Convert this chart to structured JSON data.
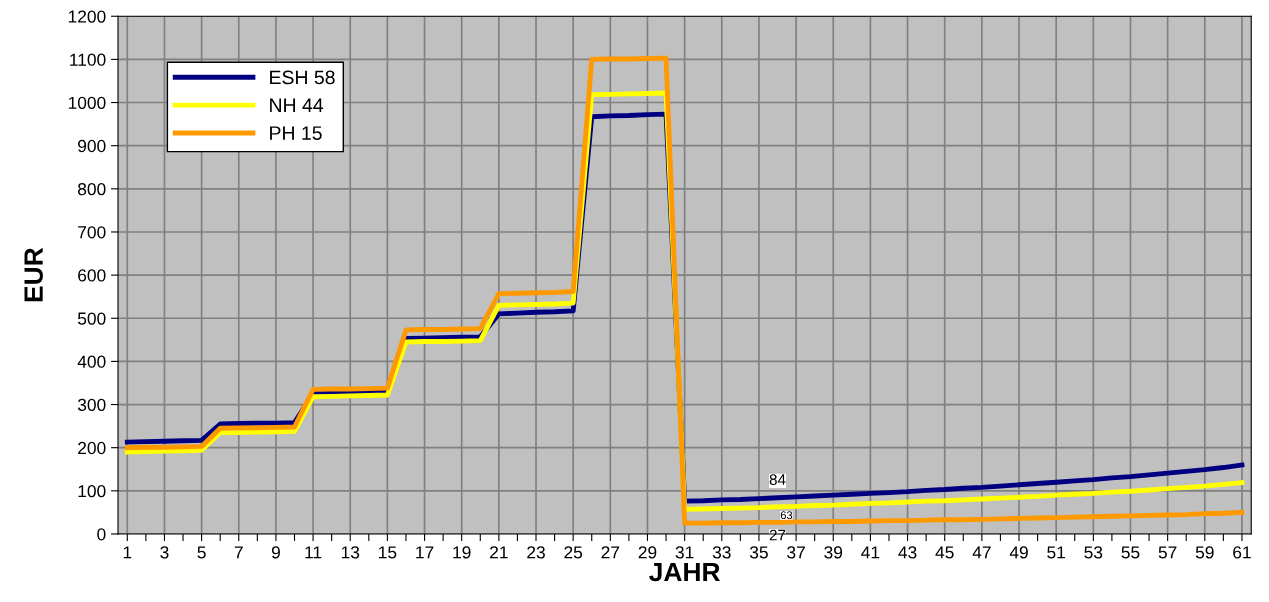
{
  "chart_data": {
    "type": "line",
    "xlabel": "JAHR",
    "ylabel": "EUR",
    "categories": [
      "1",
      null,
      "3",
      null,
      "5",
      null,
      "7",
      null,
      "9",
      null,
      "11",
      null,
      "13",
      null,
      "15",
      null,
      "17",
      null,
      "19",
      null,
      "21",
      null,
      "23",
      null,
      "25",
      null,
      "27",
      null,
      "29",
      null,
      "31",
      null,
      "33",
      null,
      "35",
      null,
      "37",
      null,
      "39",
      null,
      "41",
      null,
      "43",
      null,
      "45",
      null,
      "47",
      null,
      "49",
      null,
      "51",
      null,
      "53",
      null,
      "55",
      null,
      "57",
      null,
      "59",
      null,
      "61"
    ],
    "series": [
      {
        "name": "ESH 58",
        "color": "#000080",
        "values": [
          213,
          214,
          215,
          216,
          217,
          255,
          256,
          257,
          257,
          258,
          325,
          326,
          327,
          329,
          330,
          453,
          454,
          455,
          456,
          457,
          510,
          512,
          514,
          515,
          517,
          967,
          969,
          970,
          972,
          973,
          76,
          77,
          79,
          80,
          82,
          84,
          86,
          88,
          90,
          92,
          94,
          96,
          98,
          101,
          103,
          106,
          108,
          111,
          114,
          117,
          120,
          123,
          126,
          130,
          133,
          137,
          141,
          145,
          149,
          154,
          160
        ],
        "value_labels": [
          null,
          null,
          null,
          null,
          null,
          null,
          null,
          null,
          null,
          null,
          null,
          null,
          null,
          null,
          null,
          null,
          null,
          null,
          null,
          null,
          null,
          null,
          null,
          null,
          null,
          null,
          null,
          null,
          null,
          null,
          null,
          null,
          null,
          null,
          null,
          "84",
          null,
          null,
          null,
          null,
          null,
          null,
          null,
          null,
          null,
          null,
          null,
          null,
          null,
          null,
          null,
          null,
          null,
          null,
          null,
          null,
          null,
          null,
          null,
          null,
          null
        ]
      },
      {
        "name": "NH 44",
        "color": "#ffff00",
        "values": [
          190,
          191,
          192,
          193,
          194,
          235,
          235,
          236,
          237,
          238,
          318,
          319,
          320,
          321,
          322,
          445,
          446,
          446,
          447,
          448,
          530,
          531,
          532,
          533,
          535,
          1018,
          1019,
          1020,
          1021,
          1022,
          57,
          58,
          59,
          60,
          61,
          63,
          64,
          66,
          67,
          69,
          71,
          72,
          74,
          76,
          77,
          79,
          81,
          83,
          85,
          87,
          90,
          92,
          94,
          97,
          99,
          102,
          105,
          108,
          111,
          115,
          119
        ],
        "value_labels": [
          null,
          null,
          null,
          null,
          null,
          null,
          null,
          null,
          null,
          null,
          null,
          null,
          null,
          null,
          null,
          null,
          null,
          null,
          null,
          null,
          null,
          null,
          null,
          null,
          null,
          null,
          null,
          null,
          null,
          null,
          null,
          null,
          null,
          null,
          null,
          "63",
          null,
          null,
          null,
          null,
          null,
          null,
          null,
          null,
          null,
          null,
          null,
          null,
          null,
          null,
          null,
          null,
          null,
          null,
          null,
          null,
          null,
          null,
          null,
          null,
          null
        ]
      },
      {
        "name": "PH 15",
        "color": "#ff9900",
        "values": [
          200,
          201,
          201,
          202,
          203,
          245,
          246,
          246,
          247,
          248,
          335,
          336,
          336,
          337,
          338,
          473,
          474,
          474,
          475,
          476,
          557,
          558,
          559,
          560,
          562,
          1100,
          1101,
          1101,
          1102,
          1103,
          25,
          25,
          26,
          26,
          27,
          27,
          28,
          28,
          29,
          29,
          30,
          31,
          31,
          32,
          33,
          33,
          34,
          35,
          36,
          37,
          38,
          39,
          40,
          41,
          42,
          43,
          44,
          45,
          47,
          48,
          50
        ],
        "value_labels": [
          null,
          null,
          null,
          null,
          null,
          null,
          null,
          null,
          null,
          null,
          null,
          null,
          null,
          null,
          null,
          null,
          null,
          null,
          null,
          null,
          null,
          null,
          null,
          null,
          null,
          null,
          null,
          null,
          null,
          null,
          null,
          null,
          null,
          null,
          null,
          "27",
          null,
          null,
          null,
          null,
          null,
          null,
          null,
          null,
          null,
          null,
          null,
          null,
          null,
          null,
          null,
          null,
          null,
          null,
          null,
          null,
          null,
          null,
          null,
          null,
          null
        ]
      }
    ],
    "ylim": [
      0,
      1200
    ],
    "yticks": [
      0,
      100,
      200,
      300,
      400,
      500,
      600,
      700,
      800,
      900,
      1000,
      1100,
      1200
    ],
    "grid": true,
    "legend": "top left",
    "marker": "none",
    "line_style": "solid"
  }
}
